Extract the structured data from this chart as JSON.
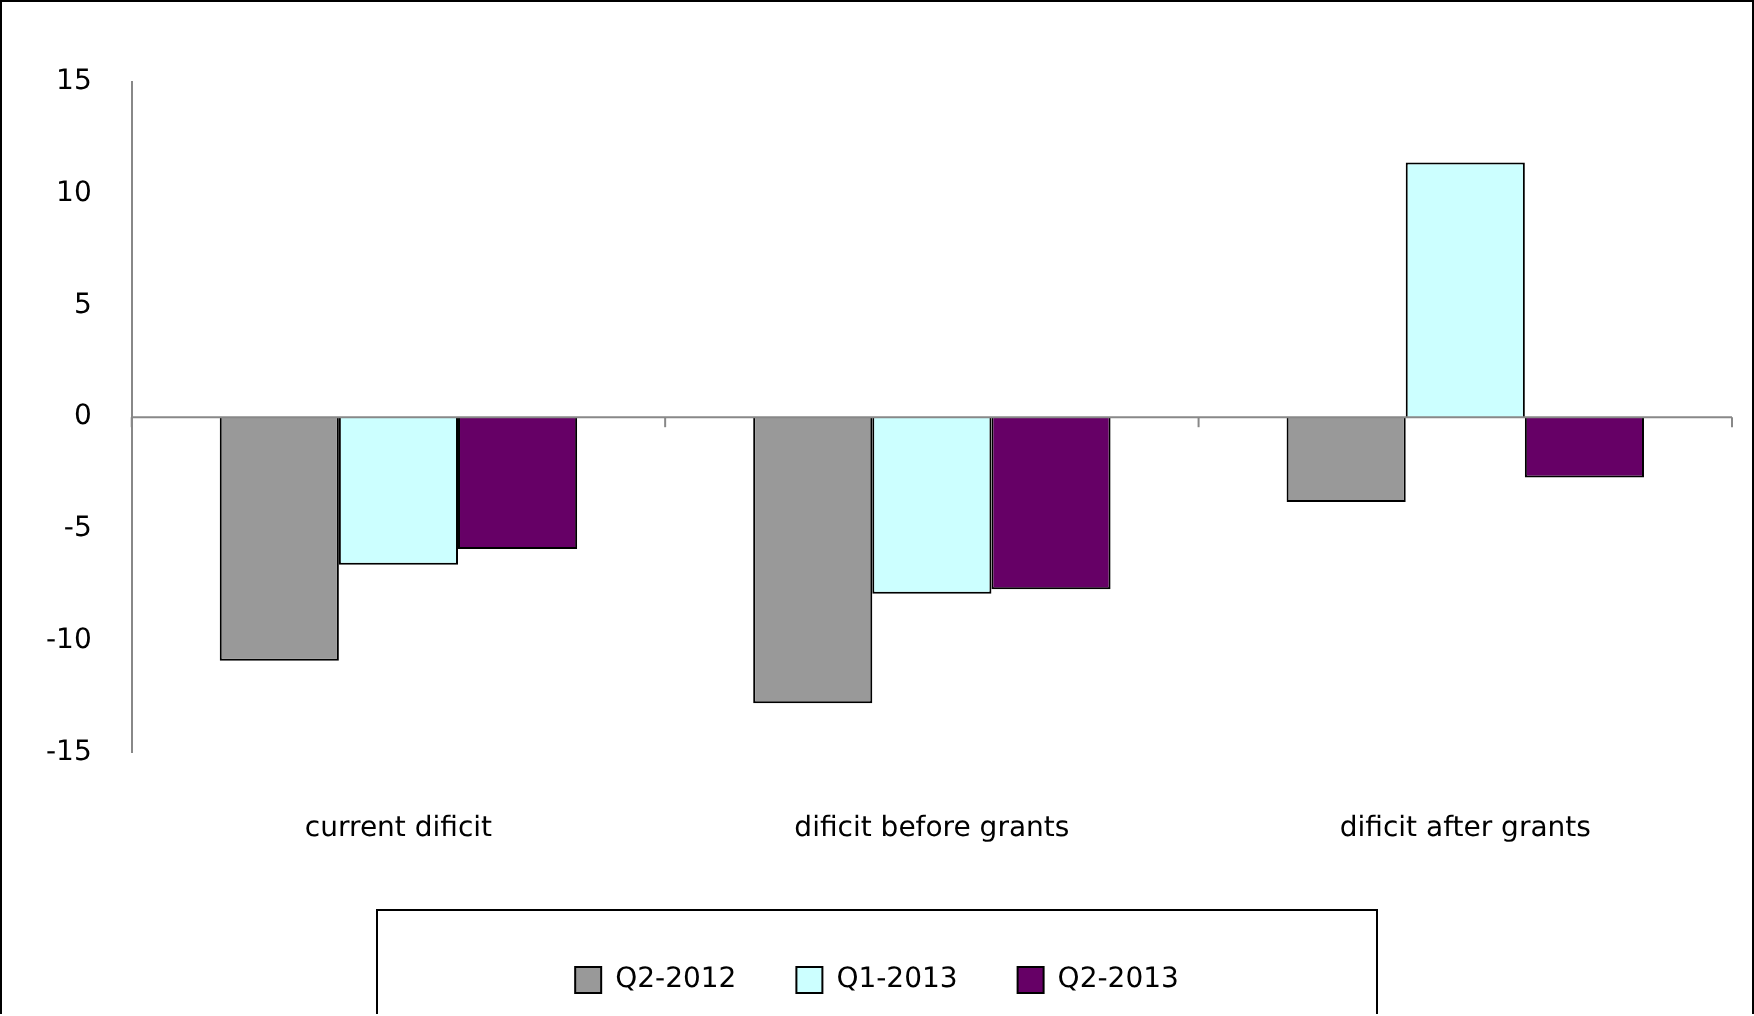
{
  "chart_data": {
    "type": "bar",
    "categories": [
      "current dificit",
      "dificit before grants",
      "dificit after grants"
    ],
    "series": [
      {
        "name": "Q2-2012",
        "color": "#999999",
        "values": [
          -10.9,
          -12.8,
          -3.8
        ]
      },
      {
        "name": "Q1-2013",
        "color": "#ccffff",
        "values": [
          -6.6,
          -7.9,
          11.4
        ]
      },
      {
        "name": "Q2-2013",
        "color": "#660066",
        "values": [
          -5.9,
          -7.7,
          -2.7
        ]
      }
    ],
    "ref_lines": [
      {
        "axis": "y",
        "value": 0,
        "color": "#888888"
      }
    ],
    "ylim": [
      -15,
      15
    ],
    "yticks": [
      -15,
      -10,
      -5,
      0,
      5,
      10,
      15
    ],
    "grid": false,
    "legend": "bottom"
  }
}
